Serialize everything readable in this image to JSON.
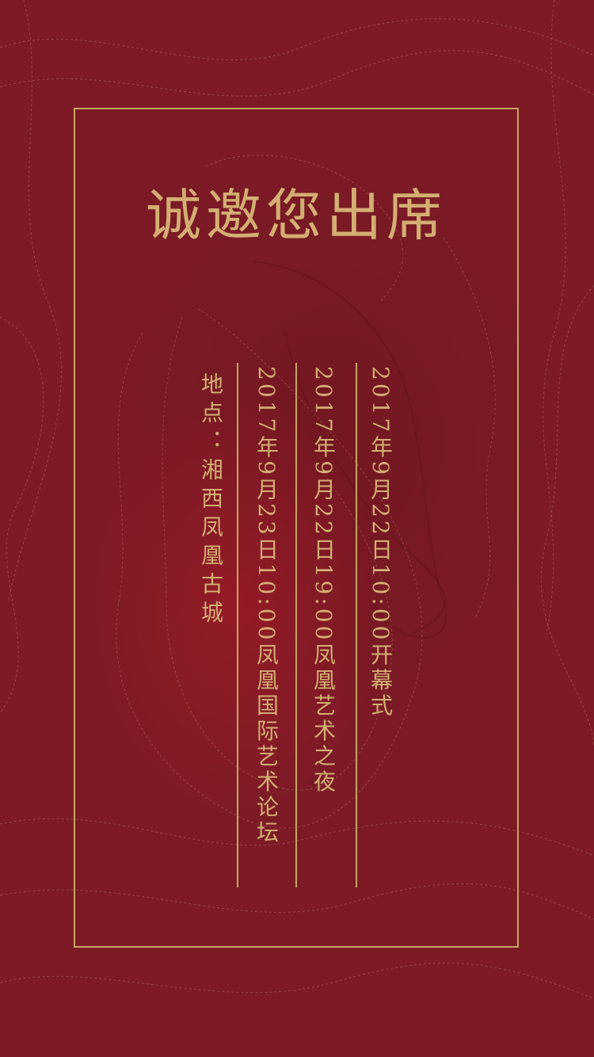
{
  "invitation": {
    "title": "诚邀您出席",
    "schedule": [
      "2017年9月22日10:00开幕式",
      "2017年9月22日19:00凤凰艺术之夜",
      "2017年9月23日10:00凤凰国际艺术论坛"
    ],
    "location": "地点：湘西凤凰古城"
  },
  "colors": {
    "background": "#7c1b26",
    "gold": "#c9a365",
    "text_gold": "#d4ae73"
  }
}
